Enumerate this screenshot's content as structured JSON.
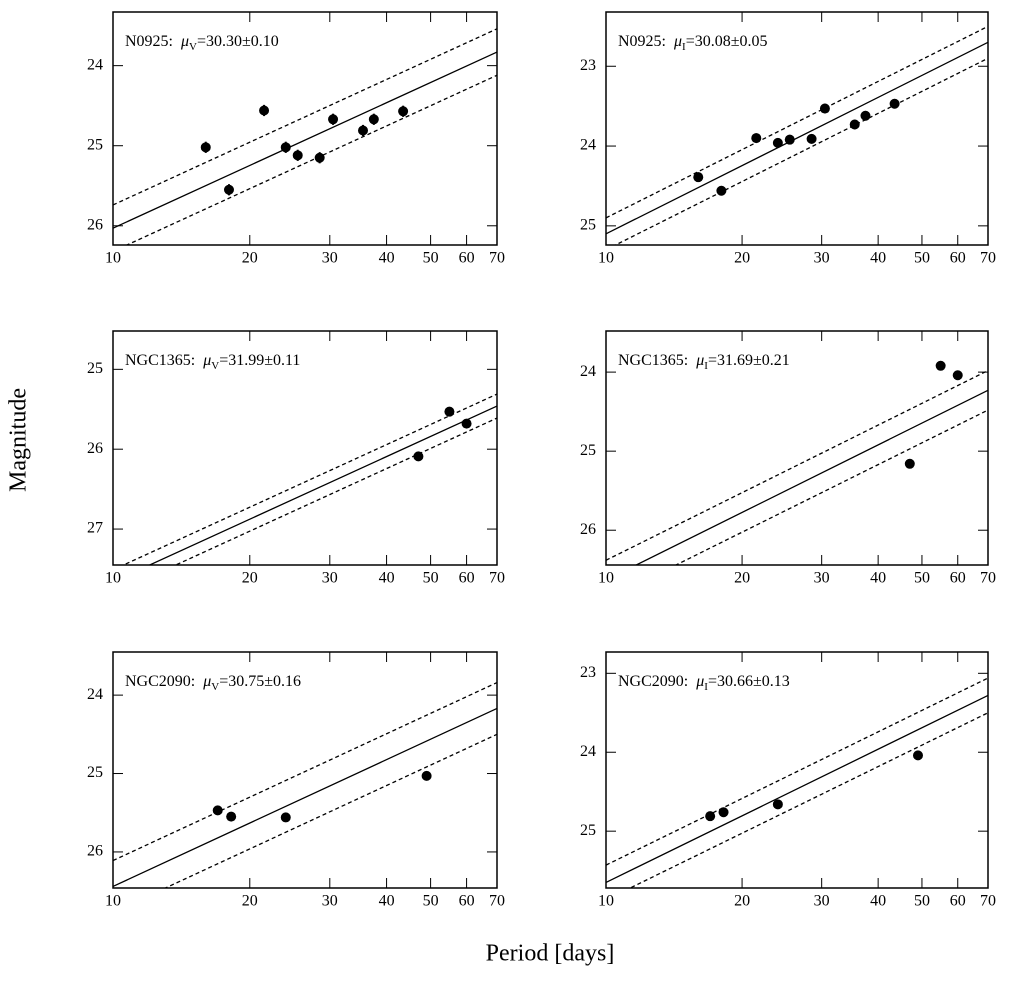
{
  "ylabel": "Magnitude",
  "xlabel": "Period [days]",
  "chart_data": [
    {
      "type": "scatter",
      "label": {
        "name": "N0925:",
        "symbol": "μ",
        "band": "V",
        "value": "=30.30±0.10"
      },
      "x": [
        16,
        18,
        21.5,
        24,
        25.5,
        28.5,
        30.5,
        35.5,
        37.5,
        43.5
      ],
      "values": [
        25.02,
        25.55,
        24.56,
        25.02,
        25.12,
        25.15,
        24.67,
        24.81,
        24.67,
        24.57
      ],
      "errors": [
        0.07,
        0.07,
        0.07,
        0.07,
        0.07,
        0.07,
        0.07,
        0.07,
        0.07,
        0.07
      ],
      "fit": {
        "x": [
          10,
          70
        ],
        "values": [
          26.03,
          23.83
        ]
      },
      "upper": {
        "x": [
          10,
          70
        ],
        "values": [
          25.74,
          23.54
        ]
      },
      "lower": {
        "x": [
          10,
          70
        ],
        "values": [
          26.32,
          24.12
        ]
      },
      "log_x": true,
      "xlim": [
        10,
        70
      ],
      "xticks": [
        10,
        20,
        30,
        40,
        50,
        60,
        70
      ],
      "ylim": [
        26.24,
        23.33
      ],
      "yticks": [
        24,
        25,
        26
      ]
    },
    {
      "type": "scatter",
      "label": {
        "name": "N0925:",
        "symbol": "μ",
        "band": "I",
        "value": "=30.08±0.05"
      },
      "x": [
        16,
        18,
        21.5,
        24,
        25.5,
        28.5,
        30.5,
        35.5,
        37.5,
        43.5
      ],
      "values": [
        24.39,
        24.56,
        23.9,
        23.96,
        23.92,
        23.91,
        23.53,
        23.73,
        23.62,
        23.47
      ],
      "errors": [
        0.06,
        0.06,
        0.06,
        0.06,
        0.06,
        0.06,
        0.06,
        0.06,
        0.06,
        0.06
      ],
      "fit": {
        "x": [
          10,
          70
        ],
        "values": [
          25.1,
          22.7
        ]
      },
      "upper": {
        "x": [
          10,
          70
        ],
        "values": [
          24.9,
          22.5
        ]
      },
      "lower": {
        "x": [
          10,
          70
        ],
        "values": [
          25.3,
          22.9
        ]
      },
      "log_x": true,
      "xlim": [
        10,
        70
      ],
      "xticks": [
        10,
        20,
        30,
        40,
        50,
        60,
        70
      ],
      "ylim": [
        25.24,
        22.32
      ],
      "yticks": [
        23,
        24,
        25
      ]
    },
    {
      "type": "scatter",
      "label": {
        "name": "NGC1365:",
        "symbol": "μ",
        "band": "V",
        "value": "=31.99±0.11"
      },
      "x": [
        47,
        55,
        60
      ],
      "values": [
        26.09,
        25.53,
        25.68
      ],
      "fit": {
        "x": [
          10,
          70
        ],
        "values": [
          27.66,
          25.46
        ]
      },
      "upper": {
        "x": [
          10,
          70
        ],
        "values": [
          27.51,
          25.31
        ]
      },
      "lower": {
        "x": [
          10,
          70
        ],
        "values": [
          27.81,
          25.61
        ]
      },
      "log_x": true,
      "xlim": [
        10,
        70
      ],
      "xticks": [
        10,
        20,
        30,
        40,
        50,
        60,
        70
      ],
      "ylim": [
        27.45,
        24.52
      ],
      "yticks": [
        25,
        26,
        27
      ]
    },
    {
      "type": "scatter",
      "label": {
        "name": "NGC1365:",
        "symbol": "μ",
        "band": "I",
        "value": "=31.69±0.21"
      },
      "x": [
        55,
        60,
        47
      ],
      "values": [
        23.92,
        24.04,
        25.16
      ],
      "fit": {
        "x": [
          10,
          70
        ],
        "values": [
          26.63,
          24.23
        ]
      },
      "upper": {
        "x": [
          10,
          70
        ],
        "values": [
          26.38,
          23.98
        ]
      },
      "lower": {
        "x": [
          10,
          70
        ],
        "values": [
          26.88,
          24.48
        ]
      },
      "log_x": true,
      "xlim": [
        10,
        70
      ],
      "xticks": [
        10,
        20,
        30,
        40,
        50,
        60,
        70
      ],
      "ylim": [
        26.44,
        23.48
      ],
      "yticks": [
        24,
        25,
        26
      ]
    },
    {
      "type": "scatter",
      "label": {
        "name": "NGC2090:",
        "symbol": "μ",
        "band": "V",
        "value": "=30.75±0.16"
      },
      "x": [
        17,
        18.2,
        24,
        49
      ],
      "values": [
        25.47,
        25.55,
        25.56,
        25.03
      ],
      "fit": {
        "x": [
          10,
          70
        ],
        "values": [
          26.44,
          24.17
        ]
      },
      "upper": {
        "x": [
          10,
          70
        ],
        "values": [
          26.11,
          23.84
        ]
      },
      "lower": {
        "x": [
          10,
          70
        ],
        "values": [
          26.77,
          24.5
        ]
      },
      "log_x": true,
      "xlim": [
        10,
        70
      ],
      "xticks": [
        10,
        20,
        30,
        40,
        50,
        60,
        70
      ],
      "ylim": [
        26.46,
        23.45
      ],
      "yticks": [
        24,
        25,
        26
      ]
    },
    {
      "type": "scatter",
      "label": {
        "name": "NGC2090:",
        "symbol": "μ",
        "band": "I",
        "value": "=30.66±0.13"
      },
      "x": [
        17,
        18.2,
        24,
        49
      ],
      "values": [
        24.81,
        24.76,
        24.66,
        24.04
      ],
      "fit": {
        "x": [
          10,
          70
        ],
        "values": [
          25.65,
          23.28
        ]
      },
      "upper": {
        "x": [
          10,
          70
        ],
        "values": [
          25.43,
          23.06
        ]
      },
      "lower": {
        "x": [
          10,
          70
        ],
        "values": [
          25.87,
          23.5
        ]
      },
      "log_x": true,
      "xlim": [
        10,
        70
      ],
      "xticks": [
        10,
        20,
        30,
        40,
        50,
        60,
        70
      ],
      "ylim": [
        25.72,
        22.73
      ],
      "yticks": [
        23,
        24,
        25
      ]
    }
  ]
}
